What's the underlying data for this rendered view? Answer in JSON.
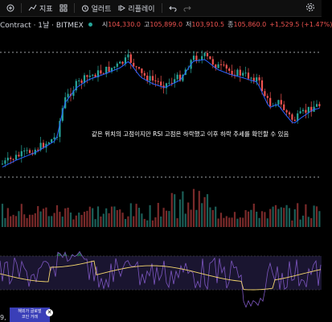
{
  "toolbar": {
    "indicators_label": "지표",
    "alerts_label": "얼러트",
    "replay_label": "리플레이"
  },
  "legend": {
    "symbol": "Contract · 1날 · BITMEX",
    "open_label": "시",
    "open_value": "104,330.0",
    "high_label": "고",
    "high_value": "105,899.0",
    "low_label": "저",
    "low_value": "103,910.5",
    "close_label": "종",
    "close_value": "105,860.0",
    "change": "+1,529.5 (+1.47%)"
  },
  "annotation": "같은 위치의 고점이지만 RSI 고점은 하락했고 이후 하락 추세를 확인할 수 있음",
  "bottom_label": "9,",
  "ad": {
    "line1": "해외가 글로벌",
    "line2": "코인 거래"
  },
  "colors": {
    "up": "#26a69a",
    "down": "#ef5350",
    "ma": "#2962ff",
    "rsi": "#7e57c2",
    "rsi_ma": "#f5d76e",
    "background": "#000000"
  },
  "chart_data": [
    {
      "type": "candlestick",
      "description_visible": "daily price candles with moving average",
      "reference_lines": [
        "high",
        "low"
      ]
    },
    {
      "type": "bar",
      "series": [
        {
          "name": "Volume"
        }
      ]
    },
    {
      "type": "line",
      "series": [
        {
          "name": "RSI"
        },
        {
          "name": "RSI MA"
        }
      ]
    }
  ]
}
